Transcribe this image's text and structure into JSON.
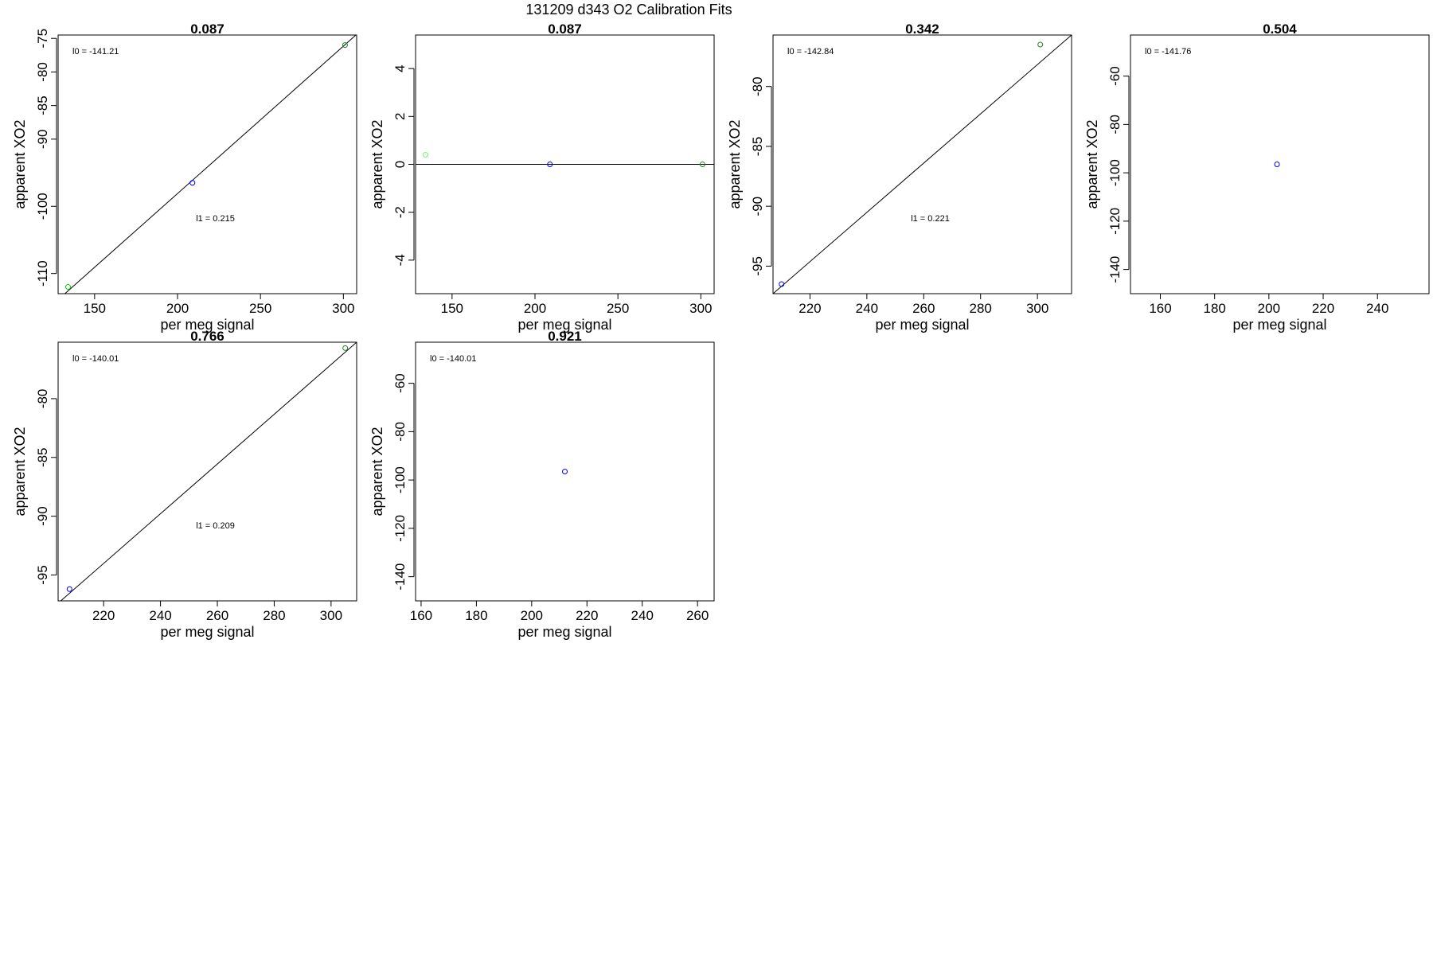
{
  "page_title": "131209   d343   O2 Calibration Fits",
  "colors": {
    "axis": "#000000",
    "fit_line": "#000000",
    "blue": "#0000ff",
    "green": "#00cc00",
    "lightgreen": "#66ff66",
    "darkgreen": "#228822"
  },
  "chart_data": [
    {
      "type": "scatter",
      "title": "0.087",
      "xlabel": "per meg signal",
      "ylabel": "apparent XO2",
      "xlim": [
        128,
        308
      ],
      "ylim": [
        -113,
        -74.5
      ],
      "xticks": [
        150,
        200,
        250,
        300
      ],
      "yticks": [
        -110,
        -100,
        -90,
        -85,
        -80,
        -75
      ],
      "points": [
        {
          "x": 134,
          "y": -112,
          "color": "green"
        },
        {
          "x": 209,
          "y": -96.5,
          "color": "blue"
        },
        {
          "x": 301,
          "y": -76,
          "color": "darkgreen"
        }
      ],
      "fit_line": {
        "x": [
          128,
          308
        ],
        "y": [
          -113.9,
          -74.4
        ]
      },
      "annotations": [
        {
          "text": "l0 =  -141.21",
          "pos": "top-left"
        },
        {
          "text": "l1 =  0.215",
          "pos": "middle"
        }
      ]
    },
    {
      "type": "scatter",
      "title": "0.087",
      "xlabel": "per meg signal",
      "ylabel": "apparent XO2",
      "xlim": [
        128,
        308
      ],
      "ylim": [
        -5.4,
        5.4
      ],
      "xticks": [
        150,
        200,
        250,
        300
      ],
      "yticks": [
        -4,
        -2,
        0,
        2,
        4
      ],
      "points": [
        {
          "x": 134,
          "y": 0.4,
          "color": "lightgreen"
        },
        {
          "x": 209,
          "y": 0,
          "color": "blue"
        },
        {
          "x": 301,
          "y": 0,
          "color": "darkgreen"
        }
      ],
      "fit_line": {
        "x": [
          128,
          308
        ],
        "y": [
          0,
          0
        ]
      },
      "annotations": []
    },
    {
      "type": "scatter",
      "title": "0.342",
      "xlabel": "per meg signal",
      "ylabel": "apparent XO2",
      "xlim": [
        207,
        312
      ],
      "ylim": [
        -97.3,
        -75.7
      ],
      "xticks": [
        220,
        240,
        260,
        280,
        300
      ],
      "yticks": [
        -95,
        -90,
        -85,
        -80
      ],
      "points": [
        {
          "x": 210,
          "y": -96.5,
          "color": "blue"
        },
        {
          "x": 301,
          "y": -76.5,
          "color": "darkgreen"
        }
      ],
      "fit_line": {
        "x": [
          207,
          312
        ],
        "y": [
          -97.3,
          -75.7
        ]
      },
      "annotations": [
        {
          "text": "l0 =  -142.84",
          "pos": "top-left"
        },
        {
          "text": "l1 =  0.221",
          "pos": "middle"
        }
      ]
    },
    {
      "type": "scatter",
      "title": "0.504",
      "xlabel": "per meg signal",
      "ylabel": "apparent XO2",
      "xlim": [
        149,
        259
      ],
      "ylim": [
        -150,
        -43
      ],
      "xticks": [
        160,
        180,
        200,
        220,
        240
      ],
      "yticks": [
        -140,
        -120,
        -100,
        -80,
        -60
      ],
      "points": [
        {
          "x": 203,
          "y": -96.5,
          "color": "blue"
        }
      ],
      "annotations": [
        {
          "text": "l0 =  -141.76",
          "pos": "top-left"
        }
      ]
    },
    {
      "type": "scatter",
      "title": "0.766",
      "xlabel": "per meg signal",
      "ylabel": "apparent XO2",
      "xlim": [
        204,
        309
      ],
      "ylim": [
        -97.2,
        -75.2
      ],
      "xticks": [
        220,
        240,
        260,
        280,
        300
      ],
      "yticks": [
        -95,
        -90,
        -85,
        -80
      ],
      "points": [
        {
          "x": 208,
          "y": -96.2,
          "color": "blue"
        },
        {
          "x": 305,
          "y": -75.7,
          "color": "darkgreen"
        }
      ],
      "fit_line": {
        "x": [
          204,
          309
        ],
        "y": [
          -97.4,
          -75.2
        ]
      },
      "annotations": [
        {
          "text": "l0 =  -140.01",
          "pos": "top-left"
        },
        {
          "text": "l1 =  0.209",
          "pos": "middle"
        }
      ]
    },
    {
      "type": "scatter",
      "title": "0.921",
      "xlabel": "per meg signal",
      "ylabel": "apparent XO2",
      "xlim": [
        158,
        266
      ],
      "ylim": [
        -150,
        -43
      ],
      "xticks": [
        160,
        180,
        200,
        220,
        240,
        260
      ],
      "yticks": [
        -140,
        -120,
        -100,
        -80,
        -60
      ],
      "points": [
        {
          "x": 212,
          "y": -96.5,
          "color": "blue"
        }
      ],
      "annotations": [
        {
          "text": "l0 =  -140.01",
          "pos": "top-left"
        }
      ]
    }
  ]
}
